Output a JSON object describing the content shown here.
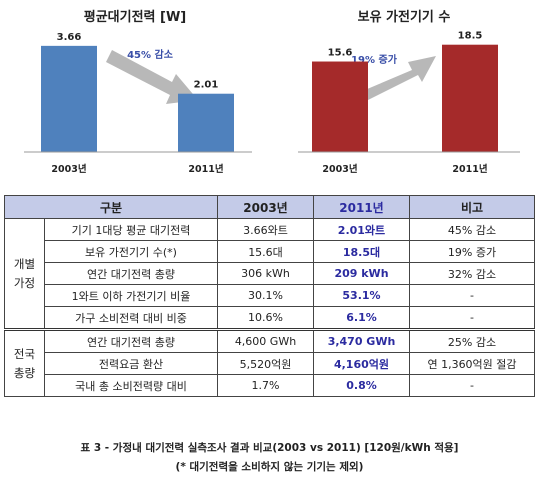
{
  "chart_data": [
    {
      "type": "bar",
      "title": "평균대기전력 [W]",
      "categories": [
        "2003년",
        "2011년"
      ],
      "values": [
        3.66,
        2.01
      ],
      "value_labels": [
        "3.66",
        "2.01"
      ],
      "annotation": "45% 감소",
      "colors": [
        "#4f81bd",
        "#4f81bd"
      ],
      "ylim": [
        0,
        4
      ],
      "grid": false,
      "legend": "none"
    },
    {
      "type": "bar",
      "title": "보유 가전기기 수",
      "categories": [
        "2003년",
        "2011년"
      ],
      "values": [
        15.6,
        18.5
      ],
      "value_labels": [
        "15.6",
        "18.5"
      ],
      "annotation": "19% 증가",
      "colors": [
        "#a52a2a",
        "#a52a2a"
      ],
      "ylim": [
        0,
        20
      ],
      "grid": false,
      "legend": "none"
    }
  ],
  "table": {
    "headers": [
      "구분",
      "2003년",
      "2011년",
      "비고"
    ],
    "groups": [
      {
        "label": "개별\n가정",
        "rows": [
          [
            "기기 1대당 평균 대기전력",
            "3.66와트",
            "2.01와트",
            "45% 감소"
          ],
          [
            "보유 가전기기 수(*)",
            "15.6대",
            "18.5대",
            "19% 증가"
          ],
          [
            "연간 대기전력 총량",
            "306 kWh",
            "209 kWh",
            "32% 감소"
          ],
          [
            "1와트 이하 가전기기 비율",
            "30.1%",
            "53.1%",
            "-"
          ],
          [
            "가구 소비전력 대비 비중",
            "10.6%",
            "6.1%",
            "-"
          ]
        ]
      },
      {
        "label": "전국\n총량",
        "rows": [
          [
            "연간 대기전력 총량",
            "4,600 GWh",
            "3,470 GWh",
            "25% 감소"
          ],
          [
            "전력요금 환산",
            "5,520억원",
            "4,160억원",
            "연 1,360억원 절감"
          ],
          [
            "국내 총 소비전력량 대비",
            "1.7%",
            "0.8%",
            "-"
          ]
        ]
      }
    ]
  },
  "caption": {
    "line1": "표 3 - 가정내 대기전력 실측조사 결과 비교(2003 vs 2011)  [120원/kWh 적용]",
    "line2": "(* 대기전력을 소비하지 않는 기기는 제외)"
  },
  "colors": {
    "bar_left": "#4f81bd",
    "bar_right": "#a52a2a",
    "header_bg": "#c4cbe8",
    "highlight_text": "#2b2ba0",
    "arrow": "#b0b0b0"
  }
}
